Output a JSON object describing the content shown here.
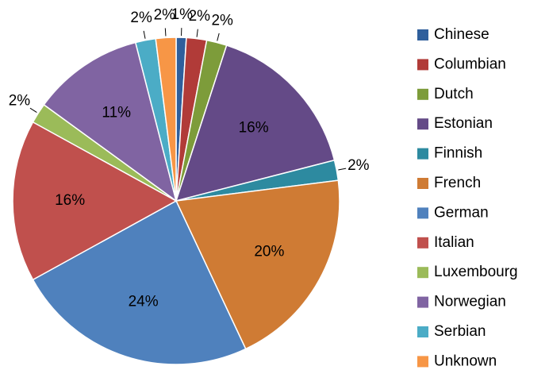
{
  "chart_data": {
    "type": "pie",
    "categories": [
      "Chinese",
      "Columbian",
      "Dutch",
      "Estonian",
      "Finnish",
      "French",
      "German",
      "Italian",
      "Luxembourg",
      "Norwegian",
      "Serbian",
      "Unknown"
    ],
    "values": [
      1,
      2,
      2,
      16,
      2,
      20,
      24,
      16,
      2,
      11,
      2,
      2
    ],
    "value_labels": [
      "1%",
      "2%",
      "2%",
      "16%",
      "2%",
      "20%",
      "24%",
      "16%",
      "2%",
      "11%",
      "2%",
      "2%"
    ],
    "colors": [
      "#2f5f9c",
      "#b13b38",
      "#7d9c3a",
      "#644a87",
      "#2d8aa0",
      "#cf7b34",
      "#4f81bd",
      "#c0504d",
      "#9bbb59",
      "#8064a2",
      "#4bacc6",
      "#f79646"
    ],
    "legend": "right"
  }
}
